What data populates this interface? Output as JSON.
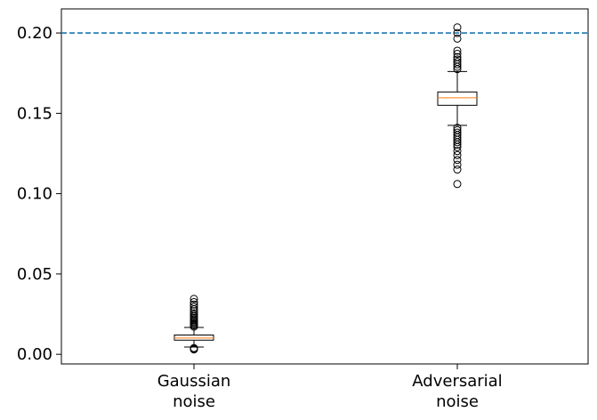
{
  "chart_data": {
    "type": "box",
    "title": "",
    "xlabel": "",
    "ylabel": "",
    "ylim": [
      -0.006,
      0.215
    ],
    "yticks": [
      0.0,
      0.05,
      0.1,
      0.15,
      0.2
    ],
    "ytick_labels": [
      "0.00",
      "0.05",
      "0.10",
      "0.15",
      "0.20"
    ],
    "categories": [
      {
        "line1": "Gaussian",
        "line2": "noise"
      },
      {
        "line1": "Adversarial",
        "line2": "noise"
      }
    ],
    "boxes": [
      {
        "whisker_low": 0.0045,
        "q1": 0.0088,
        "median": 0.0101,
        "q3": 0.012,
        "whisker_high": 0.0167,
        "outliers": [
          0.003,
          0.0034,
          0.0039,
          0.0172,
          0.018,
          0.0188,
          0.0195,
          0.0203,
          0.021,
          0.0218,
          0.0226,
          0.0235,
          0.0245,
          0.0255,
          0.0268,
          0.028,
          0.0295,
          0.031,
          0.0325,
          0.0345
        ]
      },
      {
        "whisker_low": 0.1425,
        "q1": 0.155,
        "median": 0.1597,
        "q3": 0.1633,
        "whisker_high": 0.176,
        "outliers": [
          0.106,
          0.115,
          0.118,
          0.121,
          0.124,
          0.1265,
          0.129,
          0.1305,
          0.132,
          0.1335,
          0.135,
          0.1365,
          0.138,
          0.1395,
          0.141,
          0.1775,
          0.179,
          0.1805,
          0.182,
          0.1835,
          0.185,
          0.187,
          0.189,
          0.1965,
          0.2,
          0.2035
        ]
      }
    ],
    "reference_line": {
      "y": 0.2,
      "style": "dashed",
      "color": "#1f77b4"
    },
    "median_color": "#ff7f0e",
    "box_color": "#000000",
    "grid": false
  }
}
